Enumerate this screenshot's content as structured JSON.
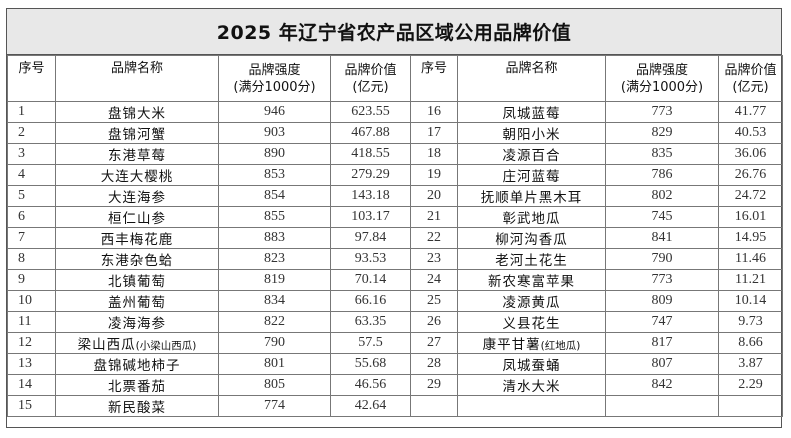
{
  "title": "2025 年辽宁省农产品区域公用品牌价值",
  "headers": {
    "index": "序号",
    "name": "品牌名称",
    "strength_line1": "品牌强度",
    "strength_line2": "(满分1000分)",
    "value_line1": "品牌价值",
    "value_line2": "(亿元)"
  },
  "left_rows": [
    {
      "idx": "1",
      "name": "盘锦大米",
      "note": "",
      "strength": "946",
      "value": "623.55"
    },
    {
      "idx": "2",
      "name": "盘锦河蟹",
      "note": "",
      "strength": "903",
      "value": "467.88"
    },
    {
      "idx": "3",
      "name": "东港草莓",
      "note": "",
      "strength": "890",
      "value": "418.55"
    },
    {
      "idx": "4",
      "name": "大连大樱桃",
      "note": "",
      "strength": "853",
      "value": "279.29"
    },
    {
      "idx": "5",
      "name": "大连海参",
      "note": "",
      "strength": "854",
      "value": "143.18"
    },
    {
      "idx": "6",
      "name": "桓仁山参",
      "note": "",
      "strength": "855",
      "value": "103.17"
    },
    {
      "idx": "7",
      "name": "西丰梅花鹿",
      "note": "",
      "strength": "883",
      "value": "97.84"
    },
    {
      "idx": "8",
      "name": "东港杂色蛤",
      "note": "",
      "strength": "823",
      "value": "93.53"
    },
    {
      "idx": "9",
      "name": "北镇葡萄",
      "note": "",
      "strength": "819",
      "value": "70.14"
    },
    {
      "idx": "10",
      "name": "盖州葡萄",
      "note": "",
      "strength": "834",
      "value": "66.16"
    },
    {
      "idx": "11",
      "name": "凌海海参",
      "note": "",
      "strength": "822",
      "value": "63.35"
    },
    {
      "idx": "12",
      "name": "梁山西瓜",
      "note": "(小梁山西瓜)",
      "strength": "790",
      "value": "57.5"
    },
    {
      "idx": "13",
      "name": "盘锦碱地柿子",
      "note": "",
      "strength": "801",
      "value": "55.68"
    },
    {
      "idx": "14",
      "name": "北票番茄",
      "note": "",
      "strength": "805",
      "value": "46.56"
    },
    {
      "idx": "15",
      "name": "新民酸菜",
      "note": "",
      "strength": "774",
      "value": "42.64"
    }
  ],
  "right_rows": [
    {
      "idx": "16",
      "name": "凤城蓝莓",
      "note": "",
      "strength": "773",
      "value": "41.77"
    },
    {
      "idx": "17",
      "name": "朝阳小米",
      "note": "",
      "strength": "829",
      "value": "40.53"
    },
    {
      "idx": "18",
      "name": "凌源百合",
      "note": "",
      "strength": "835",
      "value": "36.06"
    },
    {
      "idx": "19",
      "name": "庄河蓝莓",
      "note": "",
      "strength": "786",
      "value": "26.76"
    },
    {
      "idx": "20",
      "name": "抚顺单片黑木耳",
      "note": "",
      "strength": "802",
      "value": "24.72"
    },
    {
      "idx": "21",
      "name": "彰武地瓜",
      "note": "",
      "strength": "745",
      "value": "16.01"
    },
    {
      "idx": "22",
      "name": "柳河沟香瓜",
      "note": "",
      "strength": "841",
      "value": "14.95"
    },
    {
      "idx": "23",
      "name": "老河土花生",
      "note": "",
      "strength": "790",
      "value": "11.46"
    },
    {
      "idx": "24",
      "name": "新农寒富苹果",
      "note": "",
      "strength": "773",
      "value": "11.21"
    },
    {
      "idx": "25",
      "name": "凌源黄瓜",
      "note": "",
      "strength": "809",
      "value": "10.14"
    },
    {
      "idx": "26",
      "name": "义县花生",
      "note": "",
      "strength": "747",
      "value": "9.73"
    },
    {
      "idx": "27",
      "name": "康平甘薯",
      "note": "(红地瓜)",
      "strength": "817",
      "value": "8.66"
    },
    {
      "idx": "28",
      "name": "凤城蚕蛹",
      "note": "",
      "strength": "807",
      "value": "3.87"
    },
    {
      "idx": "29",
      "name": "清水大米",
      "note": "",
      "strength": "842",
      "value": "2.29"
    },
    {
      "idx": "",
      "name": "",
      "note": "",
      "strength": "",
      "value": ""
    }
  ]
}
